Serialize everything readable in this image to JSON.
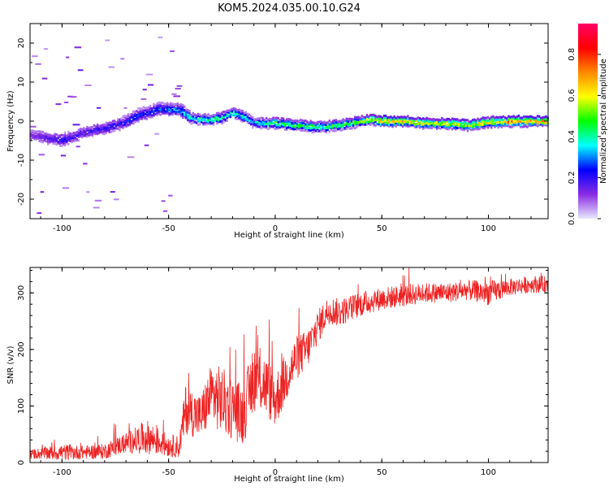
{
  "title": "KOM5.2024.035.00.10.G24",
  "colors": {
    "snr_line": "#ee2222",
    "background": "#ffffff",
    "colormap": [
      "#e8e8ff",
      "#8a2be2",
      "#0000ff",
      "#00ffff",
      "#00ff00",
      "#ffff00",
      "#ff8800",
      "#ff0000",
      "#ff0066"
    ]
  },
  "chart_data": [
    {
      "type": "heatmap",
      "xlabel": "Height of straight line (km)",
      "ylabel": "Frequency (Hz)",
      "xlim": [
        -115,
        128
      ],
      "ylim": [
        -25,
        25
      ],
      "xticks": [
        -100,
        -50,
        0,
        50,
        100
      ],
      "xtick_labels": [
        "-100",
        "-50",
        "0",
        "50",
        "100"
      ],
      "yticks": [
        -20,
        -10,
        0,
        10,
        20
      ],
      "ytick_labels": [
        "-20",
        "-10",
        "0",
        "10",
        "20"
      ],
      "ridge": {
        "x": [
          -115,
          -105,
          -100,
          -95,
          -90,
          -85,
          -80,
          -75,
          -70,
          -65,
          -60,
          -55,
          -50,
          -45,
          -40,
          -35,
          -30,
          -25,
          -20,
          -15,
          -10,
          -5,
          0,
          10,
          20,
          30,
          40,
          45,
          50,
          60,
          70,
          80,
          90,
          100,
          110,
          120,
          128
        ],
        "y": [
          -3.5,
          -4.5,
          -4.8,
          -4,
          -2.8,
          -2.2,
          -1.8,
          -1,
          0,
          1.5,
          2.2,
          3.2,
          3,
          3,
          0.8,
          0.4,
          0.5,
          1,
          2.2,
          1.2,
          -0.5,
          -0.5,
          -0.5,
          -1,
          -1.5,
          -1,
          0,
          0.5,
          0,
          0,
          -0.5,
          -0.5,
          -1,
          -0.2,
          0,
          0,
          0
        ]
      },
      "intensity": {
        "x": [
          -115,
          -100,
          -90,
          -75,
          -60,
          -45,
          -40,
          -25,
          -10,
          0,
          10,
          30,
          45,
          50,
          60,
          80,
          100,
          110,
          128
        ],
        "amplitude": [
          0.15,
          0.25,
          0.2,
          0.25,
          0.3,
          0.35,
          0.45,
          0.5,
          0.4,
          0.55,
          0.55,
          0.55,
          0.65,
          0.8,
          0.75,
          0.7,
          0.7,
          0.85,
          0.8
        ]
      },
      "colorbar": {
        "label": "Normalized spectral amplitude",
        "range": [
          0.0,
          0.95
        ],
        "ticks": [
          0.0,
          0.2,
          0.4,
          0.6,
          0.8
        ],
        "tick_labels": [
          "0.0",
          "0.2",
          "0.4",
          "0.6",
          "0.8"
        ]
      }
    },
    {
      "type": "line",
      "xlabel": "Height of straight line (km)",
      "ylabel": "SNR (v/v)",
      "xlim": [
        -115,
        128
      ],
      "ylim": [
        0,
        345
      ],
      "xticks": [
        -100,
        -50,
        0,
        50,
        100
      ],
      "xtick_labels": [
        "-100",
        "-50",
        "0",
        "50",
        "100"
      ],
      "yticks": [
        0,
        100,
        200,
        300
      ],
      "ytick_labels": [
        "0",
        "100",
        "200",
        "300"
      ],
      "series": [
        {
          "x": [
            -115,
            -100,
            -90,
            -80,
            -70,
            -60,
            -50,
            -45,
            -42,
            -35,
            -30,
            -25,
            -20,
            -15,
            -10,
            -5,
            0,
            5,
            10,
            15,
            20,
            25,
            30,
            40,
            50,
            60,
            70,
            80,
            90,
            100,
            110,
            120,
            128
          ],
          "values": [
            15,
            18,
            18,
            20,
            35,
            45,
            30,
            28,
            95,
            80,
            120,
            110,
            95,
            85,
            150,
            140,
            110,
            150,
            185,
            200,
            240,
            270,
            265,
            280,
            290,
            295,
            300,
            300,
            305,
            300,
            310,
            315,
            315
          ],
          "noise": [
            8,
            15,
            12,
            14,
            18,
            30,
            20,
            20,
            45,
            40,
            55,
            60,
            55,
            55,
            60,
            55,
            50,
            45,
            40,
            35,
            30,
            25,
            25,
            22,
            20,
            20,
            18,
            18,
            18,
            22,
            15,
            15,
            15
          ]
        }
      ]
    }
  ]
}
